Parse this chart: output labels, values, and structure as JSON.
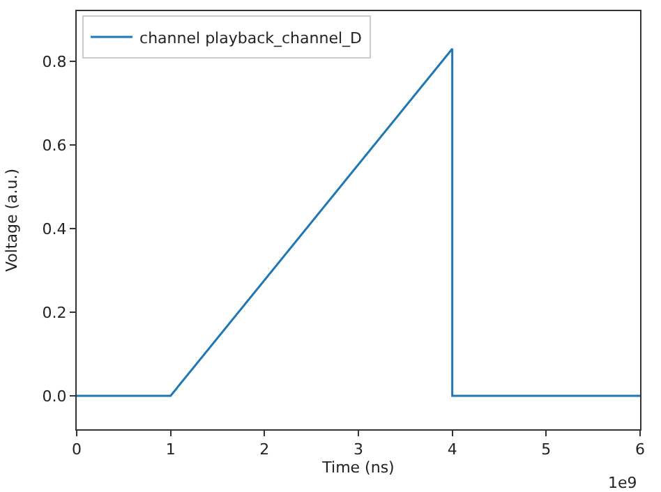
{
  "chart_data": {
    "type": "line",
    "xlabel": "Time (ns)",
    "ylabel": "Voltage (a.u.)",
    "x": [
      0,
      1,
      4,
      4,
      6
    ],
    "series": [
      {
        "name": "channel playback_channel_D",
        "color": "#1f77b4",
        "values": [
          0,
          0,
          0.83,
          0,
          0
        ]
      }
    ],
    "xlim": [
      0,
      6
    ],
    "xticks": [
      0,
      1,
      2,
      3,
      4,
      5,
      6
    ],
    "ylim": [
      -0.08,
      0.92
    ],
    "yticks": [
      {
        "value": 0,
        "label": "0.0"
      },
      {
        "value": 0.2,
        "label": "0.2"
      },
      {
        "value": 0.4,
        "label": "0.4"
      },
      {
        "value": 0.6,
        "label": "0.6"
      },
      {
        "value": 0.8,
        "label": "0.8"
      }
    ],
    "annotations": [
      "1e9"
    ],
    "legend": "top left",
    "marker": "none",
    "line_style": "solid"
  }
}
